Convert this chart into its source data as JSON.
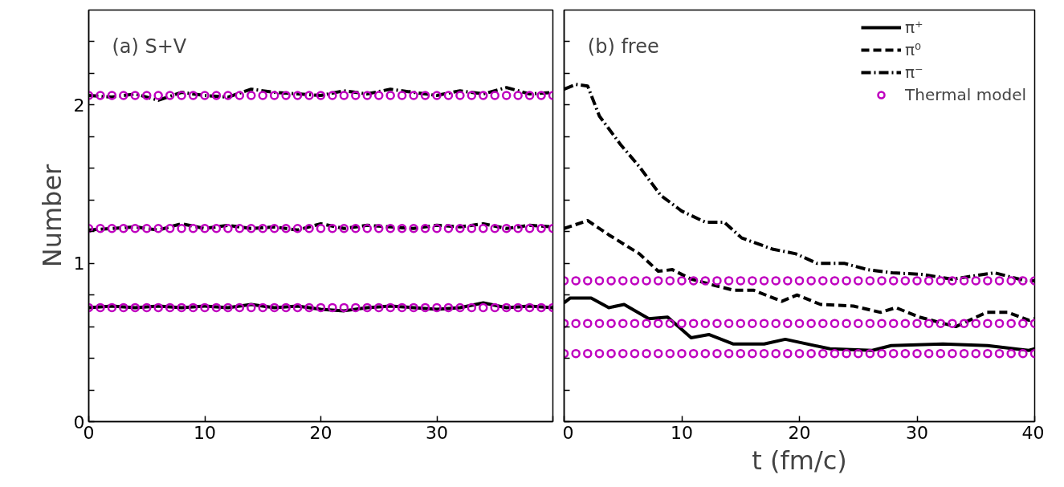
{
  "chart_data": [
    {
      "type": "line",
      "title": "(a) S+V",
      "ylabel": "Number",
      "xlim": [
        0,
        40
      ],
      "ylim": [
        0,
        2.6
      ],
      "xticks": [
        0,
        10,
        20,
        30,
        {
          "value": 40,
          "label": null
        }
      ],
      "yticks": [
        0,
        {
          "value": 0.2,
          "label": null
        },
        {
          "value": 0.4,
          "label": null
        },
        {
          "value": 0.6,
          "label": null
        },
        {
          "value": 0.8,
          "label": null
        },
        1,
        {
          "value": 1.2,
          "label": null
        },
        {
          "value": 1.4,
          "label": null
        },
        {
          "value": 1.6,
          "label": null
        },
        {
          "value": 1.8,
          "label": null
        },
        2,
        {
          "value": 2.2,
          "label": null
        },
        {
          "value": 2.4,
          "label": null
        }
      ],
      "legend": false,
      "grid": false,
      "series": [
        {
          "color": "#000000",
          "line_style": "solid",
          "x": [
            0,
            2,
            4,
            6,
            8,
            10,
            12,
            14,
            16,
            18,
            20,
            22,
            24,
            26,
            28,
            30,
            32,
            34,
            36,
            38,
            40
          ],
          "values": [
            0.72,
            0.73,
            0.72,
            0.73,
            0.72,
            0.73,
            0.72,
            0.74,
            0.72,
            0.73,
            0.71,
            0.7,
            0.72,
            0.73,
            0.72,
            0.71,
            0.72,
            0.75,
            0.72,
            0.73,
            0.72
          ]
        },
        {
          "color": "#000000",
          "line_style": "dashed",
          "x": [
            0,
            2,
            4,
            6,
            8,
            10,
            12,
            14,
            16,
            18,
            20,
            22,
            24,
            26,
            28,
            30,
            32,
            34,
            36,
            38,
            40
          ],
          "values": [
            1.21,
            1.22,
            1.23,
            1.21,
            1.25,
            1.22,
            1.24,
            1.22,
            1.23,
            1.21,
            1.25,
            1.22,
            1.24,
            1.23,
            1.22,
            1.24,
            1.23,
            1.25,
            1.22,
            1.24,
            1.23
          ]
        },
        {
          "color": "#000000",
          "line_style": "dashdot",
          "x": [
            0,
            2,
            4,
            6,
            8,
            10,
            12,
            14,
            16,
            18,
            20,
            22,
            24,
            26,
            28,
            30,
            32,
            34,
            36,
            38,
            40
          ],
          "values": [
            2.06,
            2.05,
            2.07,
            2.03,
            2.08,
            2.06,
            2.05,
            2.1,
            2.08,
            2.07,
            2.06,
            2.09,
            2.07,
            2.1,
            2.08,
            2.06,
            2.09,
            2.07,
            2.11,
            2.07,
            2.08
          ]
        },
        {
          "type": "scatter",
          "marker": "circle",
          "color": "#bf00bf",
          "x": [
            0,
            1,
            2,
            3,
            4,
            5,
            6,
            7,
            8,
            9,
            10,
            11,
            12,
            13,
            14,
            15,
            16,
            17,
            18,
            19,
            20,
            21,
            22,
            23,
            24,
            25,
            26,
            27,
            28,
            29,
            30,
            31,
            32,
            33,
            34,
            35,
            36,
            37,
            38,
            39,
            40
          ],
          "values": [
            0.72,
            0.72,
            0.72,
            0.72,
            0.72,
            0.72,
            0.72,
            0.72,
            0.72,
            0.72,
            0.72,
            0.72,
            0.72,
            0.72,
            0.72,
            0.72,
            0.72,
            0.72,
            0.72,
            0.72,
            0.72,
            0.72,
            0.72,
            0.72,
            0.72,
            0.72,
            0.72,
            0.72,
            0.72,
            0.72,
            0.72,
            0.72,
            0.72,
            0.72,
            0.72,
            0.72,
            0.72,
            0.72,
            0.72,
            0.72,
            0.72
          ]
        },
        {
          "type": "scatter",
          "marker": "circle",
          "color": "#bf00bf",
          "x": [
            0,
            1,
            2,
            3,
            4,
            5,
            6,
            7,
            8,
            9,
            10,
            11,
            12,
            13,
            14,
            15,
            16,
            17,
            18,
            19,
            20,
            21,
            22,
            23,
            24,
            25,
            26,
            27,
            28,
            29,
            30,
            31,
            32,
            33,
            34,
            35,
            36,
            37,
            38,
            39,
            40
          ],
          "values": [
            1.22,
            1.22,
            1.22,
            1.22,
            1.22,
            1.22,
            1.22,
            1.22,
            1.22,
            1.22,
            1.22,
            1.22,
            1.22,
            1.22,
            1.22,
            1.22,
            1.22,
            1.22,
            1.22,
            1.22,
            1.22,
            1.22,
            1.22,
            1.22,
            1.22,
            1.22,
            1.22,
            1.22,
            1.22,
            1.22,
            1.22,
            1.22,
            1.22,
            1.22,
            1.22,
            1.22,
            1.22,
            1.22,
            1.22,
            1.22,
            1.22
          ]
        },
        {
          "type": "scatter",
          "marker": "circle",
          "color": "#bf00bf",
          "x": [
            0,
            1,
            2,
            3,
            4,
            5,
            6,
            7,
            8,
            9,
            10,
            11,
            12,
            13,
            14,
            15,
            16,
            17,
            18,
            19,
            20,
            21,
            22,
            23,
            24,
            25,
            26,
            27,
            28,
            29,
            30,
            31,
            32,
            33,
            34,
            35,
            36,
            37,
            38,
            39,
            40
          ],
          "values": [
            2.06,
            2.06,
            2.06,
            2.06,
            2.06,
            2.06,
            2.06,
            2.06,
            2.06,
            2.06,
            2.06,
            2.06,
            2.06,
            2.06,
            2.06,
            2.06,
            2.06,
            2.06,
            2.06,
            2.06,
            2.06,
            2.06,
            2.06,
            2.06,
            2.06,
            2.06,
            2.06,
            2.06,
            2.06,
            2.06,
            2.06,
            2.06,
            2.06,
            2.06,
            2.06,
            2.06,
            2.06,
            2.06,
            2.06,
            2.06,
            2.06
          ]
        }
      ]
    },
    {
      "type": "line",
      "title": "(b) free",
      "xlabel": "t (fm/c)",
      "xlim": [
        0,
        40
      ],
      "ylim": [
        0,
        2.6
      ],
      "tick_labels": "x",
      "xticks": [
        0,
        10,
        20,
        30,
        40
      ],
      "yticks": [
        0,
        {
          "value": 0.2,
          "label": null
        },
        {
          "value": 0.4,
          "label": null
        },
        {
          "value": 0.6,
          "label": null
        },
        {
          "value": 0.8,
          "label": null
        },
        1,
        {
          "value": 1.2,
          "label": null
        },
        {
          "value": 1.4,
          "label": null
        },
        {
          "value": 1.6,
          "label": null
        },
        {
          "value": 1.8,
          "label": null
        },
        2,
        {
          "value": 2.2,
          "label": null
        },
        {
          "value": 2.4,
          "label": null
        }
      ],
      "legend": "top right",
      "grid": false,
      "series": [
        {
          "name": "π⁺",
          "color": "#000000",
          "line_style": "solid",
          "x": [
            0,
            0.5,
            2.3,
            3.8,
            5.1,
            7.2,
            8.8,
            10.8,
            12.3,
            14.4,
            17,
            18.8,
            22.6,
            26.2,
            27.8,
            32.2,
            36,
            39.5,
            40
          ],
          "values": [
            0.75,
            0.78,
            0.78,
            0.72,
            0.74,
            0.65,
            0.66,
            0.53,
            0.55,
            0.49,
            0.49,
            0.52,
            0.46,
            0.45,
            0.48,
            0.49,
            0.48,
            0.45,
            0.46
          ]
        },
        {
          "name": "π⁰",
          "color": "#000000",
          "line_style": "dashed",
          "x": [
            0,
            2,
            3.8,
            6.4,
            8,
            9.2,
            10.8,
            12.8,
            14.4,
            16.1,
            18.5,
            19.8,
            21.8,
            24.6,
            26.9,
            28.2,
            30.2,
            33.3,
            35.9,
            37.7,
            39.5,
            40
          ],
          "values": [
            1.22,
            1.27,
            1.18,
            1.06,
            0.95,
            0.96,
            0.9,
            0.86,
            0.83,
            0.83,
            0.76,
            0.8,
            0.74,
            0.73,
            0.69,
            0.72,
            0.66,
            0.6,
            0.69,
            0.69,
            0.64,
            0.65
          ]
        },
        {
          "name": "π⁻",
          "color": "#000000",
          "line_style": "dashdot",
          "x": [
            0,
            1,
            2,
            3,
            4.8,
            6.4,
            8.2,
            10,
            12,
            13.6,
            15.1,
            17.7,
            19.7,
            21.5,
            23.8,
            25.8,
            27.9,
            30.4,
            33,
            36.6,
            39.2,
            40
          ],
          "values": [
            2.1,
            2.13,
            2.12,
            1.93,
            1.75,
            1.61,
            1.43,
            1.33,
            1.26,
            1.26,
            1.16,
            1.09,
            1.06,
            1.0,
            1.0,
            0.96,
            0.94,
            0.93,
            0.9,
            0.94,
            0.89,
            0.89
          ]
        },
        {
          "type": "scatter",
          "name": "Thermal model",
          "marker": "circle",
          "color": "#bf00bf",
          "x": [
            0,
            1,
            2,
            3,
            4,
            5,
            6,
            7,
            8,
            9,
            10,
            11,
            12,
            13,
            14,
            15,
            16,
            17,
            18,
            19,
            20,
            21,
            22,
            23,
            24,
            25,
            26,
            27,
            28,
            29,
            30,
            31,
            32,
            33,
            34,
            35,
            36,
            37,
            38,
            39,
            40
          ],
          "values": [
            0.43,
            0.43,
            0.43,
            0.43,
            0.43,
            0.43,
            0.43,
            0.43,
            0.43,
            0.43,
            0.43,
            0.43,
            0.43,
            0.43,
            0.43,
            0.43,
            0.43,
            0.43,
            0.43,
            0.43,
            0.43,
            0.43,
            0.43,
            0.43,
            0.43,
            0.43,
            0.43,
            0.43,
            0.43,
            0.43,
            0.43,
            0.43,
            0.43,
            0.43,
            0.43,
            0.43,
            0.43,
            0.43,
            0.43,
            0.43,
            0.43
          ]
        },
        {
          "type": "scatter",
          "marker": "circle",
          "color": "#bf00bf",
          "x": [
            0,
            1,
            2,
            3,
            4,
            5,
            6,
            7,
            8,
            9,
            10,
            11,
            12,
            13,
            14,
            15,
            16,
            17,
            18,
            19,
            20,
            21,
            22,
            23,
            24,
            25,
            26,
            27,
            28,
            29,
            30,
            31,
            32,
            33,
            34,
            35,
            36,
            37,
            38,
            39,
            40
          ],
          "values": [
            0.62,
            0.62,
            0.62,
            0.62,
            0.62,
            0.62,
            0.62,
            0.62,
            0.62,
            0.62,
            0.62,
            0.62,
            0.62,
            0.62,
            0.62,
            0.62,
            0.62,
            0.62,
            0.62,
            0.62,
            0.62,
            0.62,
            0.62,
            0.62,
            0.62,
            0.62,
            0.62,
            0.62,
            0.62,
            0.62,
            0.62,
            0.62,
            0.62,
            0.62,
            0.62,
            0.62,
            0.62,
            0.62,
            0.62,
            0.62,
            0.62
          ]
        },
        {
          "type": "scatter",
          "marker": "circle",
          "color": "#bf00bf",
          "x": [
            0,
            1,
            2,
            3,
            4,
            5,
            6,
            7,
            8,
            9,
            10,
            11,
            12,
            13,
            14,
            15,
            16,
            17,
            18,
            19,
            20,
            21,
            22,
            23,
            24,
            25,
            26,
            27,
            28,
            29,
            30,
            31,
            32,
            33,
            34,
            35,
            36,
            37,
            38,
            39,
            40
          ],
          "values": [
            0.89,
            0.89,
            0.89,
            0.89,
            0.89,
            0.89,
            0.89,
            0.89,
            0.89,
            0.89,
            0.89,
            0.89,
            0.89,
            0.89,
            0.89,
            0.89,
            0.89,
            0.89,
            0.89,
            0.89,
            0.89,
            0.89,
            0.89,
            0.89,
            0.89,
            0.89,
            0.89,
            0.89,
            0.89,
            0.89,
            0.89,
            0.89,
            0.89,
            0.89,
            0.89,
            0.89,
            0.89,
            0.89,
            0.89,
            0.89,
            0.89
          ]
        }
      ]
    }
  ]
}
